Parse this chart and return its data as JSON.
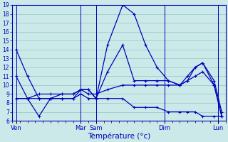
{
  "title": "",
  "xlabel": "Température (°c)",
  "ylabel": "",
  "background_color": "#cce9e9",
  "line_color": "#0000bb",
  "grid_color": "#99cccc",
  "ylim": [
    6,
    19
  ],
  "yticks": [
    6,
    7,
    8,
    9,
    10,
    11,
    12,
    13,
    14,
    15,
    16,
    17,
    18,
    19
  ],
  "xlim": [
    0,
    28
  ],
  "x_day_positions": [
    0.5,
    9,
    11,
    20,
    27
  ],
  "x_day_labels": [
    "Ven",
    "Mar",
    "Sam",
    "Dim",
    "Lun"
  ],
  "x_minor_count": 28,
  "series1_x": [
    0.5,
    2,
    3.5,
    5,
    6.5,
    8,
    9,
    10,
    11,
    12.5,
    14.5,
    16,
    17.5,
    19,
    20.5,
    22,
    23,
    24,
    25,
    26.5,
    27.5
  ],
  "series1_y": [
    14,
    11,
    8.5,
    8.5,
    8.5,
    8.5,
    9.5,
    9.5,
    8.5,
    14.5,
    19,
    18,
    14.5,
    12,
    10.5,
    10,
    10.5,
    12,
    12.5,
    10,
    6.5
  ],
  "series2_x": [
    0.5,
    2,
    3.5,
    5,
    6.5,
    8,
    9,
    10,
    11,
    12.5,
    14.5,
    16,
    17.5,
    19,
    20.5,
    22,
    23,
    24,
    25,
    26.5,
    27.5
  ],
  "series2_y": [
    11,
    8.5,
    9,
    9,
    9,
    9,
    9.5,
    9.5,
    8.5,
    11.5,
    14.5,
    10.5,
    10.5,
    10.5,
    10.5,
    10,
    11,
    12,
    12.5,
    10.5,
    7
  ],
  "series3_x": [
    0.5,
    2,
    3.5,
    5,
    6.5,
    8,
    9,
    10,
    11,
    12.5,
    14.5,
    16,
    17.5,
    19,
    20.5,
    22,
    23,
    24,
    25,
    26.5,
    27.5
  ],
  "series3_y": [
    8.5,
    8.5,
    6.5,
    8.5,
    9,
    9,
    9.5,
    9,
    9,
    9.5,
    10,
    10,
    10,
    10,
    10,
    10,
    10.5,
    11,
    11.5,
    10,
    6.5
  ],
  "series4_x": [
    0.5,
    2,
    3.5,
    5,
    6.5,
    8,
    9,
    10,
    11,
    12.5,
    14.5,
    16,
    17.5,
    19,
    20.5,
    22,
    23,
    24,
    25,
    26.5,
    27.5
  ],
  "series4_y": [
    8.5,
    8.5,
    8.5,
    8.5,
    8.5,
    8.5,
    9,
    8.5,
    8.5,
    8.5,
    8.5,
    7.5,
    7.5,
    7.5,
    7,
    7,
    7,
    7,
    6.5,
    6.5,
    6.5
  ]
}
